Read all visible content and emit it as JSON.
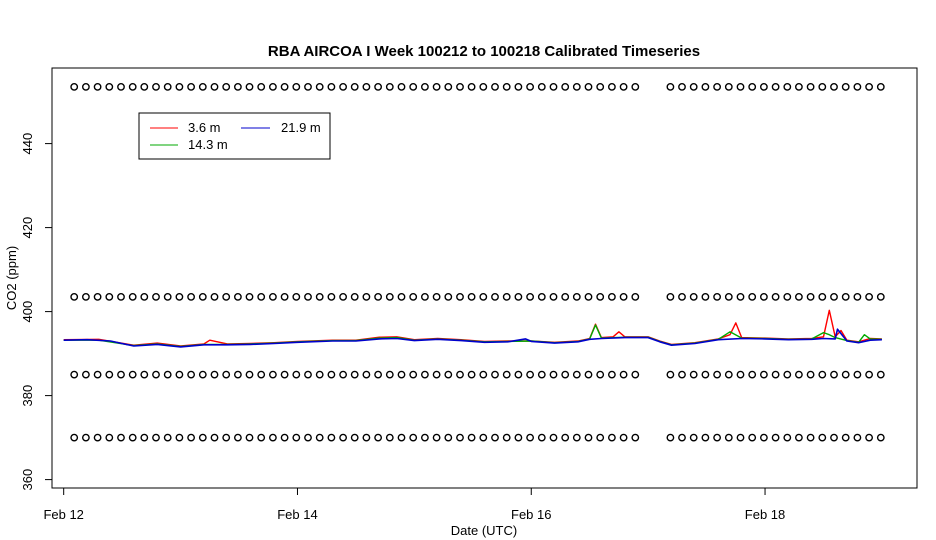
{
  "chart_data": {
    "type": "line",
    "title": "RBA AIRCOA I  Week 100212 to 100218  Calibrated Timeseries",
    "xlabel": "Date (UTC)",
    "ylabel": "CO2 (ppm)",
    "x_ticks": [
      {
        "day": 12,
        "label": "Feb 12"
      },
      {
        "day": 14,
        "label": "Feb 14"
      },
      {
        "day": 16,
        "label": "Feb 16"
      },
      {
        "day": 18,
        "label": "Feb 18"
      }
    ],
    "xlim": [
      11.9,
      19.3
    ],
    "y_ticks": [
      360,
      380,
      400,
      420,
      440
    ],
    "ylim": [
      358,
      458
    ],
    "grid": false,
    "legend": {
      "placement": "top-left",
      "entries": [
        {
          "name": "3.6 m",
          "color": "#ff0000"
        },
        {
          "name": "14.3 m",
          "color": "#00aa00"
        },
        {
          "name": "21.9 m",
          "color": "#0000cc"
        }
      ]
    },
    "series": [
      {
        "name": "3.6 m",
        "color": "#ff0000",
        "points": [
          [
            12.0,
            393.3
          ],
          [
            12.3,
            393.4
          ],
          [
            12.6,
            392.0
          ],
          [
            12.8,
            392.5
          ],
          [
            13.0,
            391.8
          ],
          [
            13.2,
            392.3
          ],
          [
            13.25,
            393.2
          ],
          [
            13.4,
            392.3
          ],
          [
            13.6,
            392.4
          ],
          [
            13.8,
            392.6
          ],
          [
            14.0,
            392.9
          ],
          [
            14.3,
            393.2
          ],
          [
            14.5,
            393.2
          ],
          [
            14.7,
            393.9
          ],
          [
            14.85,
            394.0
          ],
          [
            15.0,
            393.3
          ],
          [
            15.2,
            393.6
          ],
          [
            15.4,
            393.3
          ],
          [
            15.6,
            392.9
          ],
          [
            15.8,
            393.0
          ],
          [
            16.0,
            393.0
          ],
          [
            16.2,
            392.7
          ],
          [
            16.4,
            393.0
          ],
          [
            16.5,
            393.6
          ],
          [
            16.55,
            397.0
          ],
          [
            16.6,
            393.8
          ],
          [
            16.7,
            394.0
          ],
          [
            16.75,
            395.2
          ],
          [
            16.8,
            394.0
          ],
          [
            17.0,
            394.0
          ],
          [
            17.1,
            393.0
          ],
          [
            17.2,
            392.2
          ],
          [
            17.4,
            392.6
          ],
          [
            17.6,
            393.5
          ],
          [
            17.7,
            394.5
          ],
          [
            17.75,
            397.3
          ],
          [
            17.8,
            393.8
          ],
          [
            18.0,
            393.7
          ],
          [
            18.2,
            393.5
          ],
          [
            18.4,
            393.6
          ],
          [
            18.5,
            394.0
          ],
          [
            18.55,
            400.3
          ],
          [
            18.6,
            394.0
          ],
          [
            18.65,
            395.5
          ],
          [
            18.7,
            393.2
          ],
          [
            18.8,
            392.8
          ],
          [
            18.9,
            393.6
          ],
          [
            19.0,
            393.5
          ]
        ]
      },
      {
        "name": "14.3 m",
        "color": "#00aa00",
        "points": [
          [
            12.0,
            393.2
          ],
          [
            12.3,
            393.2
          ],
          [
            12.6,
            391.9
          ],
          [
            12.8,
            392.3
          ],
          [
            13.0,
            391.7
          ],
          [
            13.2,
            392.2
          ],
          [
            13.4,
            392.2
          ],
          [
            13.6,
            392.3
          ],
          [
            13.8,
            392.5
          ],
          [
            14.0,
            392.8
          ],
          [
            14.3,
            393.1
          ],
          [
            14.5,
            393.1
          ],
          [
            14.7,
            393.7
          ],
          [
            14.85,
            393.8
          ],
          [
            15.0,
            393.2
          ],
          [
            15.2,
            393.5
          ],
          [
            15.4,
            393.2
          ],
          [
            15.6,
            392.8
          ],
          [
            15.8,
            392.9
          ],
          [
            16.0,
            393.0
          ],
          [
            16.2,
            392.6
          ],
          [
            16.4,
            392.9
          ],
          [
            16.5,
            393.5
          ],
          [
            16.55,
            396.8
          ],
          [
            16.6,
            393.7
          ],
          [
            16.8,
            393.9
          ],
          [
            17.0,
            393.9
          ],
          [
            17.1,
            392.9
          ],
          [
            17.2,
            392.1
          ],
          [
            17.4,
            392.5
          ],
          [
            17.6,
            393.4
          ],
          [
            17.7,
            395.2
          ],
          [
            17.8,
            393.7
          ],
          [
            18.0,
            393.6
          ],
          [
            18.2,
            393.4
          ],
          [
            18.4,
            393.5
          ],
          [
            18.5,
            395.0
          ],
          [
            18.55,
            394.5
          ],
          [
            18.6,
            393.8
          ],
          [
            18.7,
            393.1
          ],
          [
            18.8,
            392.7
          ],
          [
            18.85,
            394.5
          ],
          [
            18.9,
            393.5
          ],
          [
            19.0,
            393.4
          ]
        ]
      },
      {
        "name": "21.9 m",
        "color": "#0000cc",
        "points": [
          [
            12.0,
            393.2
          ],
          [
            12.2,
            393.3
          ],
          [
            12.4,
            393.0
          ],
          [
            12.6,
            391.8
          ],
          [
            12.8,
            392.2
          ],
          [
            13.0,
            391.6
          ],
          [
            13.2,
            392.1
          ],
          [
            13.4,
            392.1
          ],
          [
            13.6,
            392.2
          ],
          [
            13.8,
            392.4
          ],
          [
            14.0,
            392.7
          ],
          [
            14.3,
            393.0
          ],
          [
            14.5,
            393.0
          ],
          [
            14.7,
            393.5
          ],
          [
            14.85,
            393.6
          ],
          [
            15.0,
            393.1
          ],
          [
            15.2,
            393.4
          ],
          [
            15.4,
            393.1
          ],
          [
            15.6,
            392.7
          ],
          [
            15.8,
            392.8
          ],
          [
            15.95,
            393.5
          ],
          [
            16.0,
            392.9
          ],
          [
            16.2,
            392.5
          ],
          [
            16.4,
            392.8
          ],
          [
            16.5,
            393.4
          ],
          [
            16.6,
            393.6
          ],
          [
            16.8,
            393.8
          ],
          [
            17.0,
            393.8
          ],
          [
            17.1,
            392.8
          ],
          [
            17.2,
            392.0
          ],
          [
            17.4,
            392.4
          ],
          [
            17.6,
            393.3
          ],
          [
            17.8,
            393.6
          ],
          [
            18.0,
            393.5
          ],
          [
            18.2,
            393.3
          ],
          [
            18.4,
            393.4
          ],
          [
            18.5,
            393.6
          ],
          [
            18.6,
            393.5
          ],
          [
            18.62,
            395.8
          ],
          [
            18.7,
            393.0
          ],
          [
            18.8,
            392.6
          ],
          [
            18.9,
            393.2
          ],
          [
            19.0,
            393.3
          ]
        ]
      }
    ],
    "marker_rows": [
      {
        "y": 453.5,
        "gaps": [
          [
            16.9,
            17.1
          ]
        ]
      },
      {
        "y": 403.5,
        "gaps": [
          [
            16.9,
            17.1
          ]
        ]
      },
      {
        "y": 385.0,
        "gaps": [
          [
            16.9,
            17.1
          ]
        ]
      },
      {
        "y": 370.0,
        "gaps": [
          [
            16.9,
            17.1
          ]
        ]
      }
    ],
    "marker_x_start": 12.09,
    "marker_x_end": 19.0,
    "marker_x_step": 0.1
  }
}
